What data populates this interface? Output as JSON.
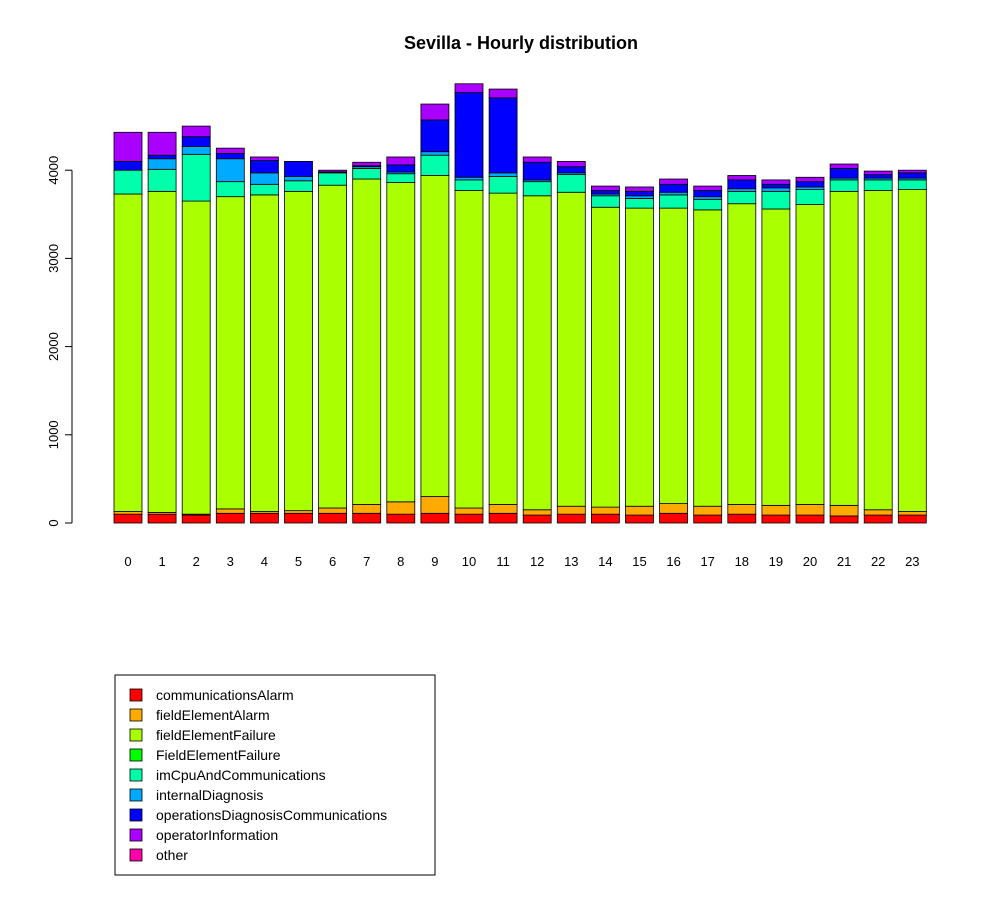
{
  "chart_data": {
    "type": "bar",
    "stacked": true,
    "title": "Sevilla - Hourly distribution",
    "xlabel": "",
    "ylabel": "",
    "ylim": [
      0,
      5000
    ],
    "yticks": [
      0,
      1000,
      2000,
      3000,
      4000
    ],
    "categories": [
      "0",
      "1",
      "2",
      "3",
      "4",
      "5",
      "6",
      "7",
      "8",
      "9",
      "10",
      "11",
      "12",
      "13",
      "14",
      "15",
      "16",
      "17",
      "18",
      "19",
      "20",
      "21",
      "22",
      "23"
    ],
    "series": [
      {
        "name": "communicationsAlarm",
        "color": "#FF0000",
        "values": [
          100,
          100,
          90,
          110,
          110,
          110,
          110,
          110,
          100,
          110,
          100,
          110,
          90,
          100,
          100,
          90,
          110,
          90,
          100,
          90,
          90,
          80,
          90,
          90
        ]
      },
      {
        "name": "fieldElementAlarm",
        "color": "#FFAA00",
        "values": [
          30,
          20,
          10,
          50,
          20,
          30,
          60,
          100,
          140,
          190,
          70,
          100,
          60,
          90,
          80,
          100,
          110,
          100,
          110,
          110,
          120,
          120,
          60,
          40
        ]
      },
      {
        "name": "fieldElementFailure",
        "color": "#AAFF00",
        "values": [
          3600,
          3640,
          3550,
          3540,
          3590,
          3620,
          3660,
          3690,
          3620,
          3640,
          3600,
          3530,
          3560,
          3560,
          3400,
          3380,
          3350,
          3360,
          3410,
          3360,
          3400,
          3560,
          3620,
          3650
        ]
      },
      {
        "name": "FieldElementFailure",
        "color": "#00FF00",
        "values": [
          0,
          0,
          0,
          0,
          0,
          0,
          0,
          0,
          0,
          0,
          0,
          0,
          0,
          0,
          0,
          0,
          0,
          0,
          0,
          0,
          0,
          0,
          0,
          0
        ]
      },
      {
        "name": "imCpuAndCommunications",
        "color": "#00FFAA",
        "values": [
          270,
          250,
          530,
          170,
          120,
          120,
          140,
          120,
          100,
          230,
          120,
          190,
          160,
          200,
          130,
          110,
          150,
          120,
          140,
          200,
          170,
          130,
          120,
          110
        ]
      },
      {
        "name": "internalDiagnosis",
        "color": "#00AAFF",
        "values": [
          0,
          120,
          90,
          260,
          130,
          50,
          10,
          20,
          20,
          40,
          30,
          40,
          20,
          20,
          20,
          30,
          30,
          30,
          30,
          40,
          30,
          20,
          20,
          20
        ]
      },
      {
        "name": "operationsDiagnosisCommunications",
        "color": "#0000FF",
        "values": [
          100,
          40,
          110,
          60,
          140,
          170,
          0,
          10,
          80,
          360,
          960,
          850,
          200,
          70,
          40,
          50,
          90,
          70,
          100,
          40,
          60,
          110,
          40,
          60
        ]
      },
      {
        "name": "operatorInformation",
        "color": "#AA00FF",
        "values": [
          330,
          260,
          120,
          60,
          40,
          0,
          20,
          40,
          90,
          180,
          100,
          100,
          60,
          60,
          50,
          50,
          60,
          50,
          50,
          50,
          50,
          50,
          40,
          30
        ]
      },
      {
        "name": "other",
        "color": "#FF00AA",
        "values": [
          0,
          0,
          0,
          0,
          0,
          0,
          0,
          0,
          0,
          0,
          0,
          0,
          0,
          0,
          0,
          0,
          0,
          0,
          0,
          0,
          0,
          0,
          0,
          0
        ]
      }
    ],
    "legend_position": "bottom-left",
    "grid": false
  }
}
